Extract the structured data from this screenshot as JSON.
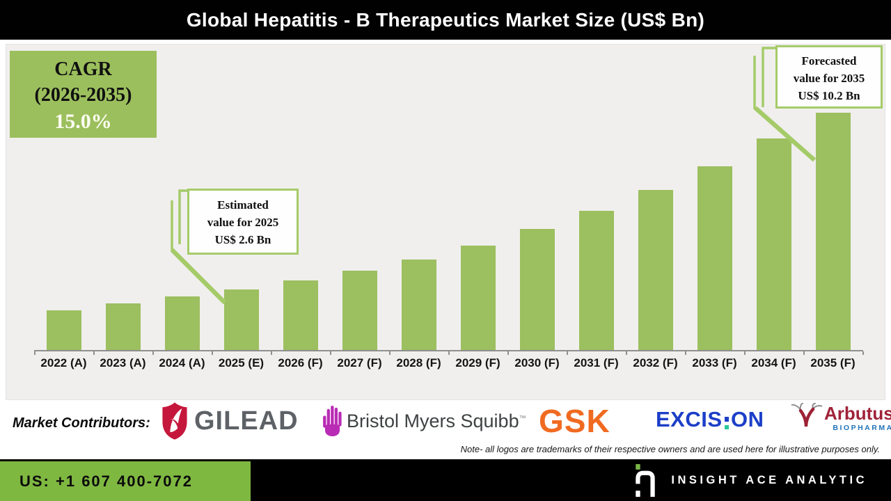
{
  "title": "Global Hepatitis - B Therapeutics Market Size (US$ Bn)",
  "cagr_box": {
    "line1": "CAGR",
    "line2": "(2026-2035)",
    "line3": "15.0%"
  },
  "callout_estimated": {
    "line1": "Estimated",
    "line2": "value for 2025",
    "line3": "US$ 2.6 Bn"
  },
  "callout_forecasted": {
    "line1": "Forecasted",
    "line2": "value for 2035",
    "line3": "US$ 10.2 Bn"
  },
  "chart_data": {
    "type": "bar",
    "title": "Global Hepatitis - B Therapeutics Market Size (US$ Bn)",
    "categories": [
      "2022 (A)",
      "2023 (A)",
      "2024 (A)",
      "2025 (E)",
      "2026 (F)",
      "2027 (F)",
      "2028 (F)",
      "2029 (F)",
      "2030 (F)",
      "2031 (F)",
      "2032 (F)",
      "2033 (F)",
      "2034 (F)",
      "2035 (F)"
    ],
    "values": [
      1.7,
      2.0,
      2.3,
      2.6,
      3.0,
      3.4,
      3.9,
      4.5,
      5.2,
      6.0,
      6.9,
      7.9,
      9.1,
      10.2
    ],
    "unit": "US$ Bn",
    "ylim": [
      0,
      11
    ],
    "grid": false,
    "legend": false,
    "bar_color": "#9CBF5F",
    "cagr": {
      "period": "2026-2035",
      "value": "15.0%"
    },
    "annotations": [
      {
        "target": "2025 (E)",
        "text": "Estimated value for 2025 US$ 2.6 Bn"
      },
      {
        "target": "2035 (F)",
        "text": "Forecasted value for 2035 US$ 10.2 Bn"
      }
    ]
  },
  "contributors": {
    "label": "Market Contributors:",
    "gilead": {
      "text": "GILEAD"
    },
    "bms": {
      "text": "Bristol Myers Squibb",
      "trademark": "™"
    },
    "gsk": {
      "text": "GSK"
    },
    "excision": {
      "text_left": "EXCIS",
      "text_right": "ON"
    },
    "arbutus": {
      "text": "Arbutus",
      "subtext": "BIOPHARMA"
    },
    "note": "Note- all logos are trademarks of their respective owners and are used here for illustrative purposes only."
  },
  "footer": {
    "phone": "US: +1 607 400-7072",
    "brand": "INSIGHT ACE ANALYTIC"
  },
  "colors": {
    "bar_green": "#9CBF5F",
    "callout_border_green": "#A5CB69",
    "footer_green": "#7FB841",
    "title_bar_bg": "#010101",
    "panel_bg": "#F0EFED",
    "gilead_gray": "#5E6267",
    "gilead_red": "#C5173C",
    "bms_magenta": "#B92BB5",
    "bms_text": "#3E4243",
    "gsk_orange": "#F06B21",
    "excision_blue": "#1C3FC8",
    "excision_teal": "#2BC79B",
    "arbutus_red": "#A02339",
    "arbutus_blue": "#2173B9",
    "insight_logo_green": "#7AB648"
  }
}
